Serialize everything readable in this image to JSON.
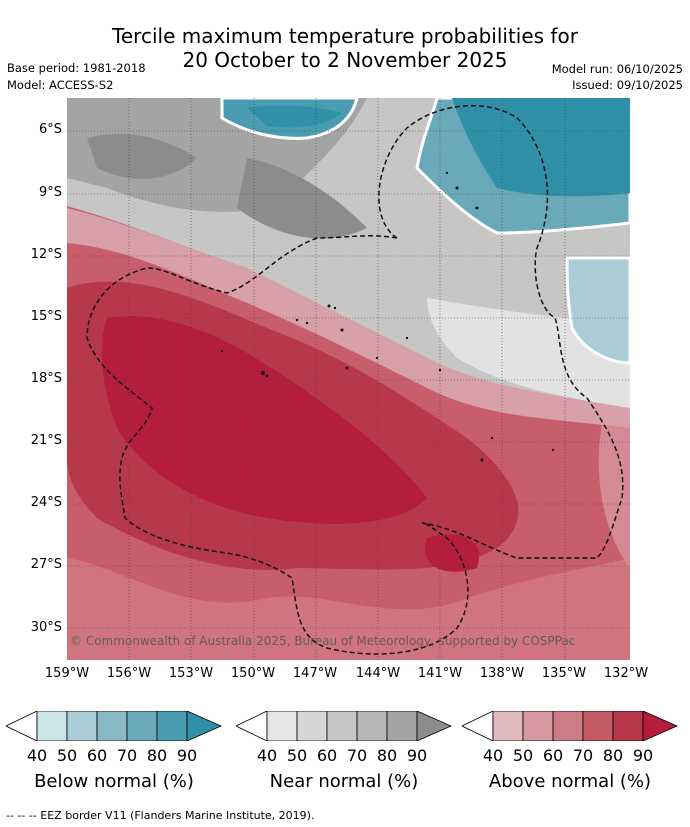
{
  "header": {
    "title_line1": "Tercile maximum temperature probabilities for",
    "title_line2": "20 October to 2 November 2025",
    "base_period": "Base period: 1981-2018",
    "model": "Model: ACCESS-S2",
    "model_run": "Model run: 06/10/2025",
    "issued": "Issued: 09/10/2025"
  },
  "map": {
    "copyright": "© Commonwealth of Australia 2025, Bureau of Meteorology, supported by COSPPac",
    "lat_labels": [
      "6°S",
      "9°S",
      "12°S",
      "15°S",
      "18°S",
      "21°S",
      "24°S",
      "27°S",
      "30°S"
    ],
    "lon_labels": [
      "159°W",
      "156°W",
      "153°W",
      "150°W",
      "147°W",
      "144°W",
      "141°W",
      "138°W",
      "135°W",
      "132°W"
    ]
  },
  "legend": {
    "ticks": [
      "40",
      "50",
      "60",
      "70",
      "80",
      "90"
    ],
    "below": {
      "title": "Below normal (%)",
      "colors": [
        "#ffffff",
        "#cde3ea",
        "#a9ccd6",
        "#8ab9c6",
        "#6aa9b9",
        "#4a9cb0",
        "#2f90a8"
      ]
    },
    "near": {
      "title": "Near normal (%)",
      "colors": [
        "#ffffff",
        "#e6e6e6",
        "#d6d6d6",
        "#c6c6c6",
        "#b6b6b6",
        "#a4a4a4",
        "#8c8c8c"
      ]
    },
    "above": {
      "title": "Above normal (%)",
      "colors": [
        "#ffffff",
        "#e2b8bf",
        "#d6979f",
        "#cd7b85",
        "#c45966",
        "#b8384b",
        "#b51d3c"
      ]
    }
  },
  "footer": "--  --  -- EEZ border V11 (Flanders Marine Institute, 2019)."
}
